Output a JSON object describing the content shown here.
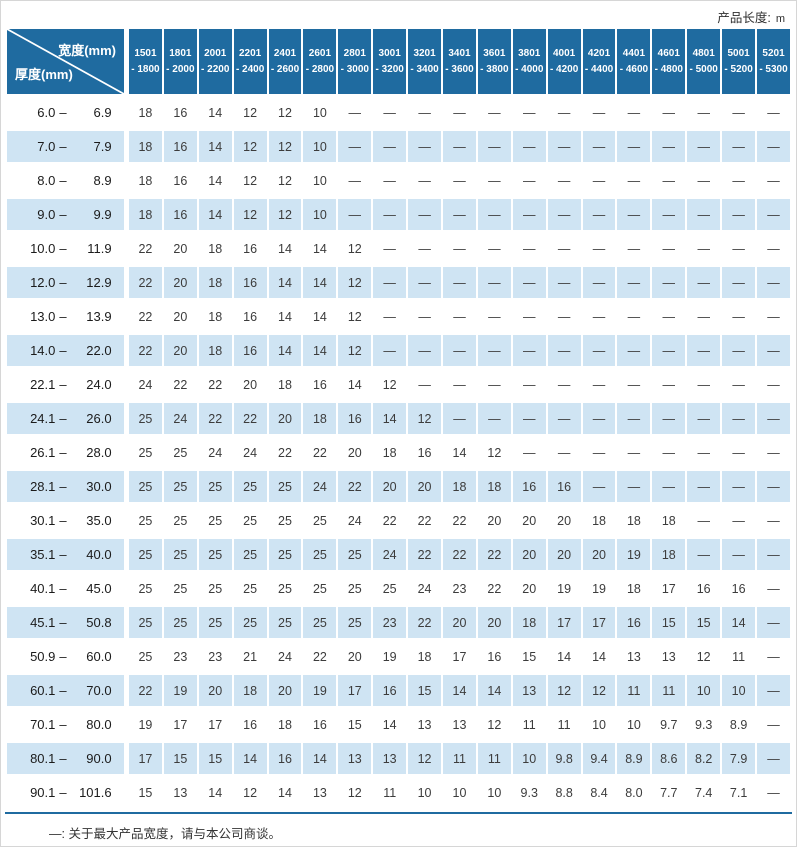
{
  "page": {
    "product_length_label": "产品长度:",
    "product_length_unit": "m",
    "footnote": "—: 关于最大产品宽度，请与本公司商谈。"
  },
  "colors": {
    "header_bg": "#1f6ba0",
    "alt_row_bg": "#cfe4f3"
  },
  "chart_data": {
    "type": "table",
    "corner": {
      "width_label": "宽度(mm)",
      "thickness_label": "厚度(mm)"
    },
    "range_separator": "–",
    "empty_symbol": "—",
    "columns": [
      {
        "line1": "1501",
        "line2": "- 1800"
      },
      {
        "line1": "1801",
        "line2": "- 2000"
      },
      {
        "line1": "2001",
        "line2": "- 2200"
      },
      {
        "line1": "2201",
        "line2": "- 2400"
      },
      {
        "line1": "2401",
        "line2": "- 2600"
      },
      {
        "line1": "2601",
        "line2": "- 2800"
      },
      {
        "line1": "2801",
        "line2": "- 3000"
      },
      {
        "line1": "3001",
        "line2": "- 3200"
      },
      {
        "line1": "3201",
        "line2": "- 3400"
      },
      {
        "line1": "3401",
        "line2": "- 3600"
      },
      {
        "line1": "3601",
        "line2": "- 3800"
      },
      {
        "line1": "3801",
        "line2": "- 4000"
      },
      {
        "line1": "4001",
        "line2": "- 4200"
      },
      {
        "line1": "4201",
        "line2": "- 4400"
      },
      {
        "line1": "4401",
        "line2": "- 4600"
      },
      {
        "line1": "4601",
        "line2": "- 4800"
      },
      {
        "line1": "4801",
        "line2": "- 5000"
      },
      {
        "line1": "5001",
        "line2": "- 5200"
      },
      {
        "line1": "5201",
        "line2": "- 5300"
      }
    ],
    "rows": [
      {
        "min": "6.0",
        "max": "6.9",
        "values": [
          "18",
          "16",
          "14",
          "12",
          "12",
          "10",
          "—",
          "—",
          "—",
          "—",
          "—",
          "—",
          "—",
          "—",
          "—",
          "—",
          "—",
          "—",
          "—"
        ]
      },
      {
        "min": "7.0",
        "max": "7.9",
        "values": [
          "18",
          "16",
          "14",
          "12",
          "12",
          "10",
          "—",
          "—",
          "—",
          "—",
          "—",
          "—",
          "—",
          "—",
          "—",
          "—",
          "—",
          "—",
          "—"
        ]
      },
      {
        "min": "8.0",
        "max": "8.9",
        "values": [
          "18",
          "16",
          "14",
          "12",
          "12",
          "10",
          "—",
          "—",
          "—",
          "—",
          "—",
          "—",
          "—",
          "—",
          "—",
          "—",
          "—",
          "—",
          "—"
        ]
      },
      {
        "min": "9.0",
        "max": "9.9",
        "values": [
          "18",
          "16",
          "14",
          "12",
          "12",
          "10",
          "—",
          "—",
          "—",
          "—",
          "—",
          "—",
          "—",
          "—",
          "—",
          "—",
          "—",
          "—",
          "—"
        ]
      },
      {
        "min": "10.0",
        "max": "11.9",
        "values": [
          "22",
          "20",
          "18",
          "16",
          "14",
          "14",
          "12",
          "—",
          "—",
          "—",
          "—",
          "—",
          "—",
          "—",
          "—",
          "—",
          "—",
          "—",
          "—"
        ]
      },
      {
        "min": "12.0",
        "max": "12.9",
        "values": [
          "22",
          "20",
          "18",
          "16",
          "14",
          "14",
          "12",
          "—",
          "—",
          "—",
          "—",
          "—",
          "—",
          "—",
          "—",
          "—",
          "—",
          "—",
          "—"
        ]
      },
      {
        "min": "13.0",
        "max": "13.9",
        "values": [
          "22",
          "20",
          "18",
          "16",
          "14",
          "14",
          "12",
          "—",
          "—",
          "—",
          "—",
          "—",
          "—",
          "—",
          "—",
          "—",
          "—",
          "—",
          "—"
        ]
      },
      {
        "min": "14.0",
        "max": "22.0",
        "values": [
          "22",
          "20",
          "18",
          "16",
          "14",
          "14",
          "12",
          "—",
          "—",
          "—",
          "—",
          "—",
          "—",
          "—",
          "—",
          "—",
          "—",
          "—",
          "—"
        ]
      },
      {
        "min": "22.1",
        "max": "24.0",
        "values": [
          "24",
          "22",
          "22",
          "20",
          "18",
          "16",
          "14",
          "12",
          "—",
          "—",
          "—",
          "—",
          "—",
          "—",
          "—",
          "—",
          "—",
          "—",
          "—"
        ]
      },
      {
        "min": "24.1",
        "max": "26.0",
        "values": [
          "25",
          "24",
          "22",
          "22",
          "20",
          "18",
          "16",
          "14",
          "12",
          "—",
          "—",
          "—",
          "—",
          "—",
          "—",
          "—",
          "—",
          "—",
          "—"
        ]
      },
      {
        "min": "26.1",
        "max": "28.0",
        "values": [
          "25",
          "25",
          "24",
          "24",
          "22",
          "22",
          "20",
          "18",
          "16",
          "14",
          "12",
          "—",
          "—",
          "—",
          "—",
          "—",
          "—",
          "—",
          "—"
        ]
      },
      {
        "min": "28.1",
        "max": "30.0",
        "values": [
          "25",
          "25",
          "25",
          "25",
          "25",
          "24",
          "22",
          "20",
          "20",
          "18",
          "18",
          "16",
          "16",
          "—",
          "—",
          "—",
          "—",
          "—",
          "—"
        ]
      },
      {
        "min": "30.1",
        "max": "35.0",
        "values": [
          "25",
          "25",
          "25",
          "25",
          "25",
          "25",
          "24",
          "22",
          "22",
          "22",
          "20",
          "20",
          "20",
          "18",
          "18",
          "18",
          "—",
          "—",
          "—"
        ]
      },
      {
        "min": "35.1",
        "max": "40.0",
        "values": [
          "25",
          "25",
          "25",
          "25",
          "25",
          "25",
          "25",
          "24",
          "22",
          "22",
          "22",
          "20",
          "20",
          "20",
          "19",
          "18",
          "—",
          "—",
          "—"
        ]
      },
      {
        "min": "40.1",
        "max": "45.0",
        "values": [
          "25",
          "25",
          "25",
          "25",
          "25",
          "25",
          "25",
          "25",
          "24",
          "23",
          "22",
          "20",
          "19",
          "19",
          "18",
          "17",
          "16",
          "16",
          "—"
        ]
      },
      {
        "min": "45.1",
        "max": "50.8",
        "values": [
          "25",
          "25",
          "25",
          "25",
          "25",
          "25",
          "25",
          "23",
          "22",
          "20",
          "20",
          "18",
          "17",
          "17",
          "16",
          "15",
          "15",
          "14",
          "—"
        ]
      },
      {
        "min": "50.9",
        "max": "60.0",
        "values": [
          "25",
          "23",
          "23",
          "21",
          "24",
          "22",
          "20",
          "19",
          "18",
          "17",
          "16",
          "15",
          "14",
          "14",
          "13",
          "13",
          "12",
          "11",
          "—"
        ]
      },
      {
        "min": "60.1",
        "max": "70.0",
        "values": [
          "22",
          "19",
          "20",
          "18",
          "20",
          "19",
          "17",
          "16",
          "15",
          "14",
          "14",
          "13",
          "12",
          "12",
          "11",
          "11",
          "10",
          "10",
          "—"
        ]
      },
      {
        "min": "70.1",
        "max": "80.0",
        "values": [
          "19",
          "17",
          "17",
          "16",
          "18",
          "16",
          "15",
          "14",
          "13",
          "13",
          "12",
          "11",
          "11",
          "10",
          "10",
          "9.7",
          "9.3",
          "8.9",
          "—"
        ]
      },
      {
        "min": "80.1",
        "max": "90.0",
        "values": [
          "17",
          "15",
          "15",
          "14",
          "16",
          "14",
          "13",
          "13",
          "12",
          "11",
          "11",
          "10",
          "9.8",
          "9.4",
          "8.9",
          "8.6",
          "8.2",
          "7.9",
          "—"
        ]
      },
      {
        "min": "90.1",
        "max": "101.6",
        "values": [
          "15",
          "13",
          "14",
          "12",
          "14",
          "13",
          "12",
          "11",
          "10",
          "10",
          "10",
          "9.3",
          "8.8",
          "8.4",
          "8.0",
          "7.7",
          "7.4",
          "7.1",
          "—"
        ]
      }
    ]
  }
}
